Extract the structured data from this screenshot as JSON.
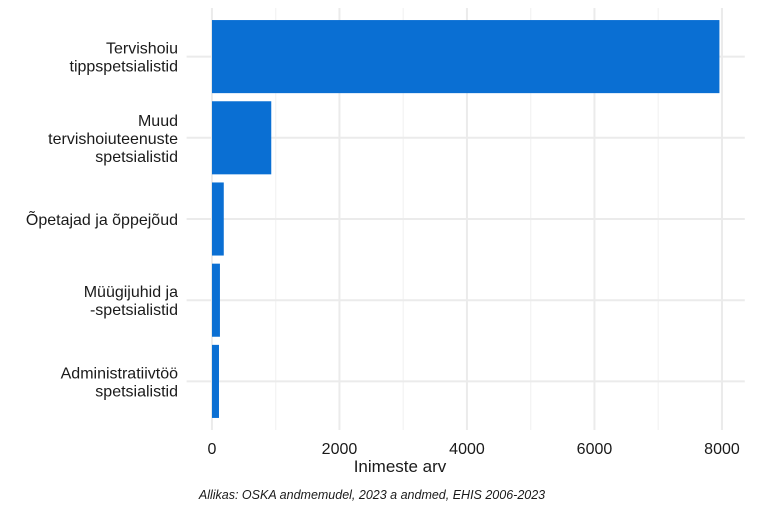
{
  "chart_data": {
    "type": "barh",
    "categories": [
      "Tervishoiu\ntippspetsialistid",
      "Muud\ntervishoiuteenuste\nspetsialistid",
      "Õpetajad ja õppejõud",
      "Müügijuhid ja\n-spetsialistid",
      "Administratiivtöö\nspetsialistid"
    ],
    "values": [
      7960,
      930,
      185,
      125,
      110
    ],
    "color": "#0a6fd3",
    "xlim": [
      -398,
      8358
    ],
    "xticks": [
      0,
      2000,
      4000,
      6000,
      8000
    ],
    "xminor": [
      1000,
      3000,
      5000,
      7000
    ],
    "grid": true,
    "xlabel": "Inimeste arv",
    "caption": "Allikas: OSKA andmemudel, 2023 a andmed, EHIS 2006-2023"
  }
}
